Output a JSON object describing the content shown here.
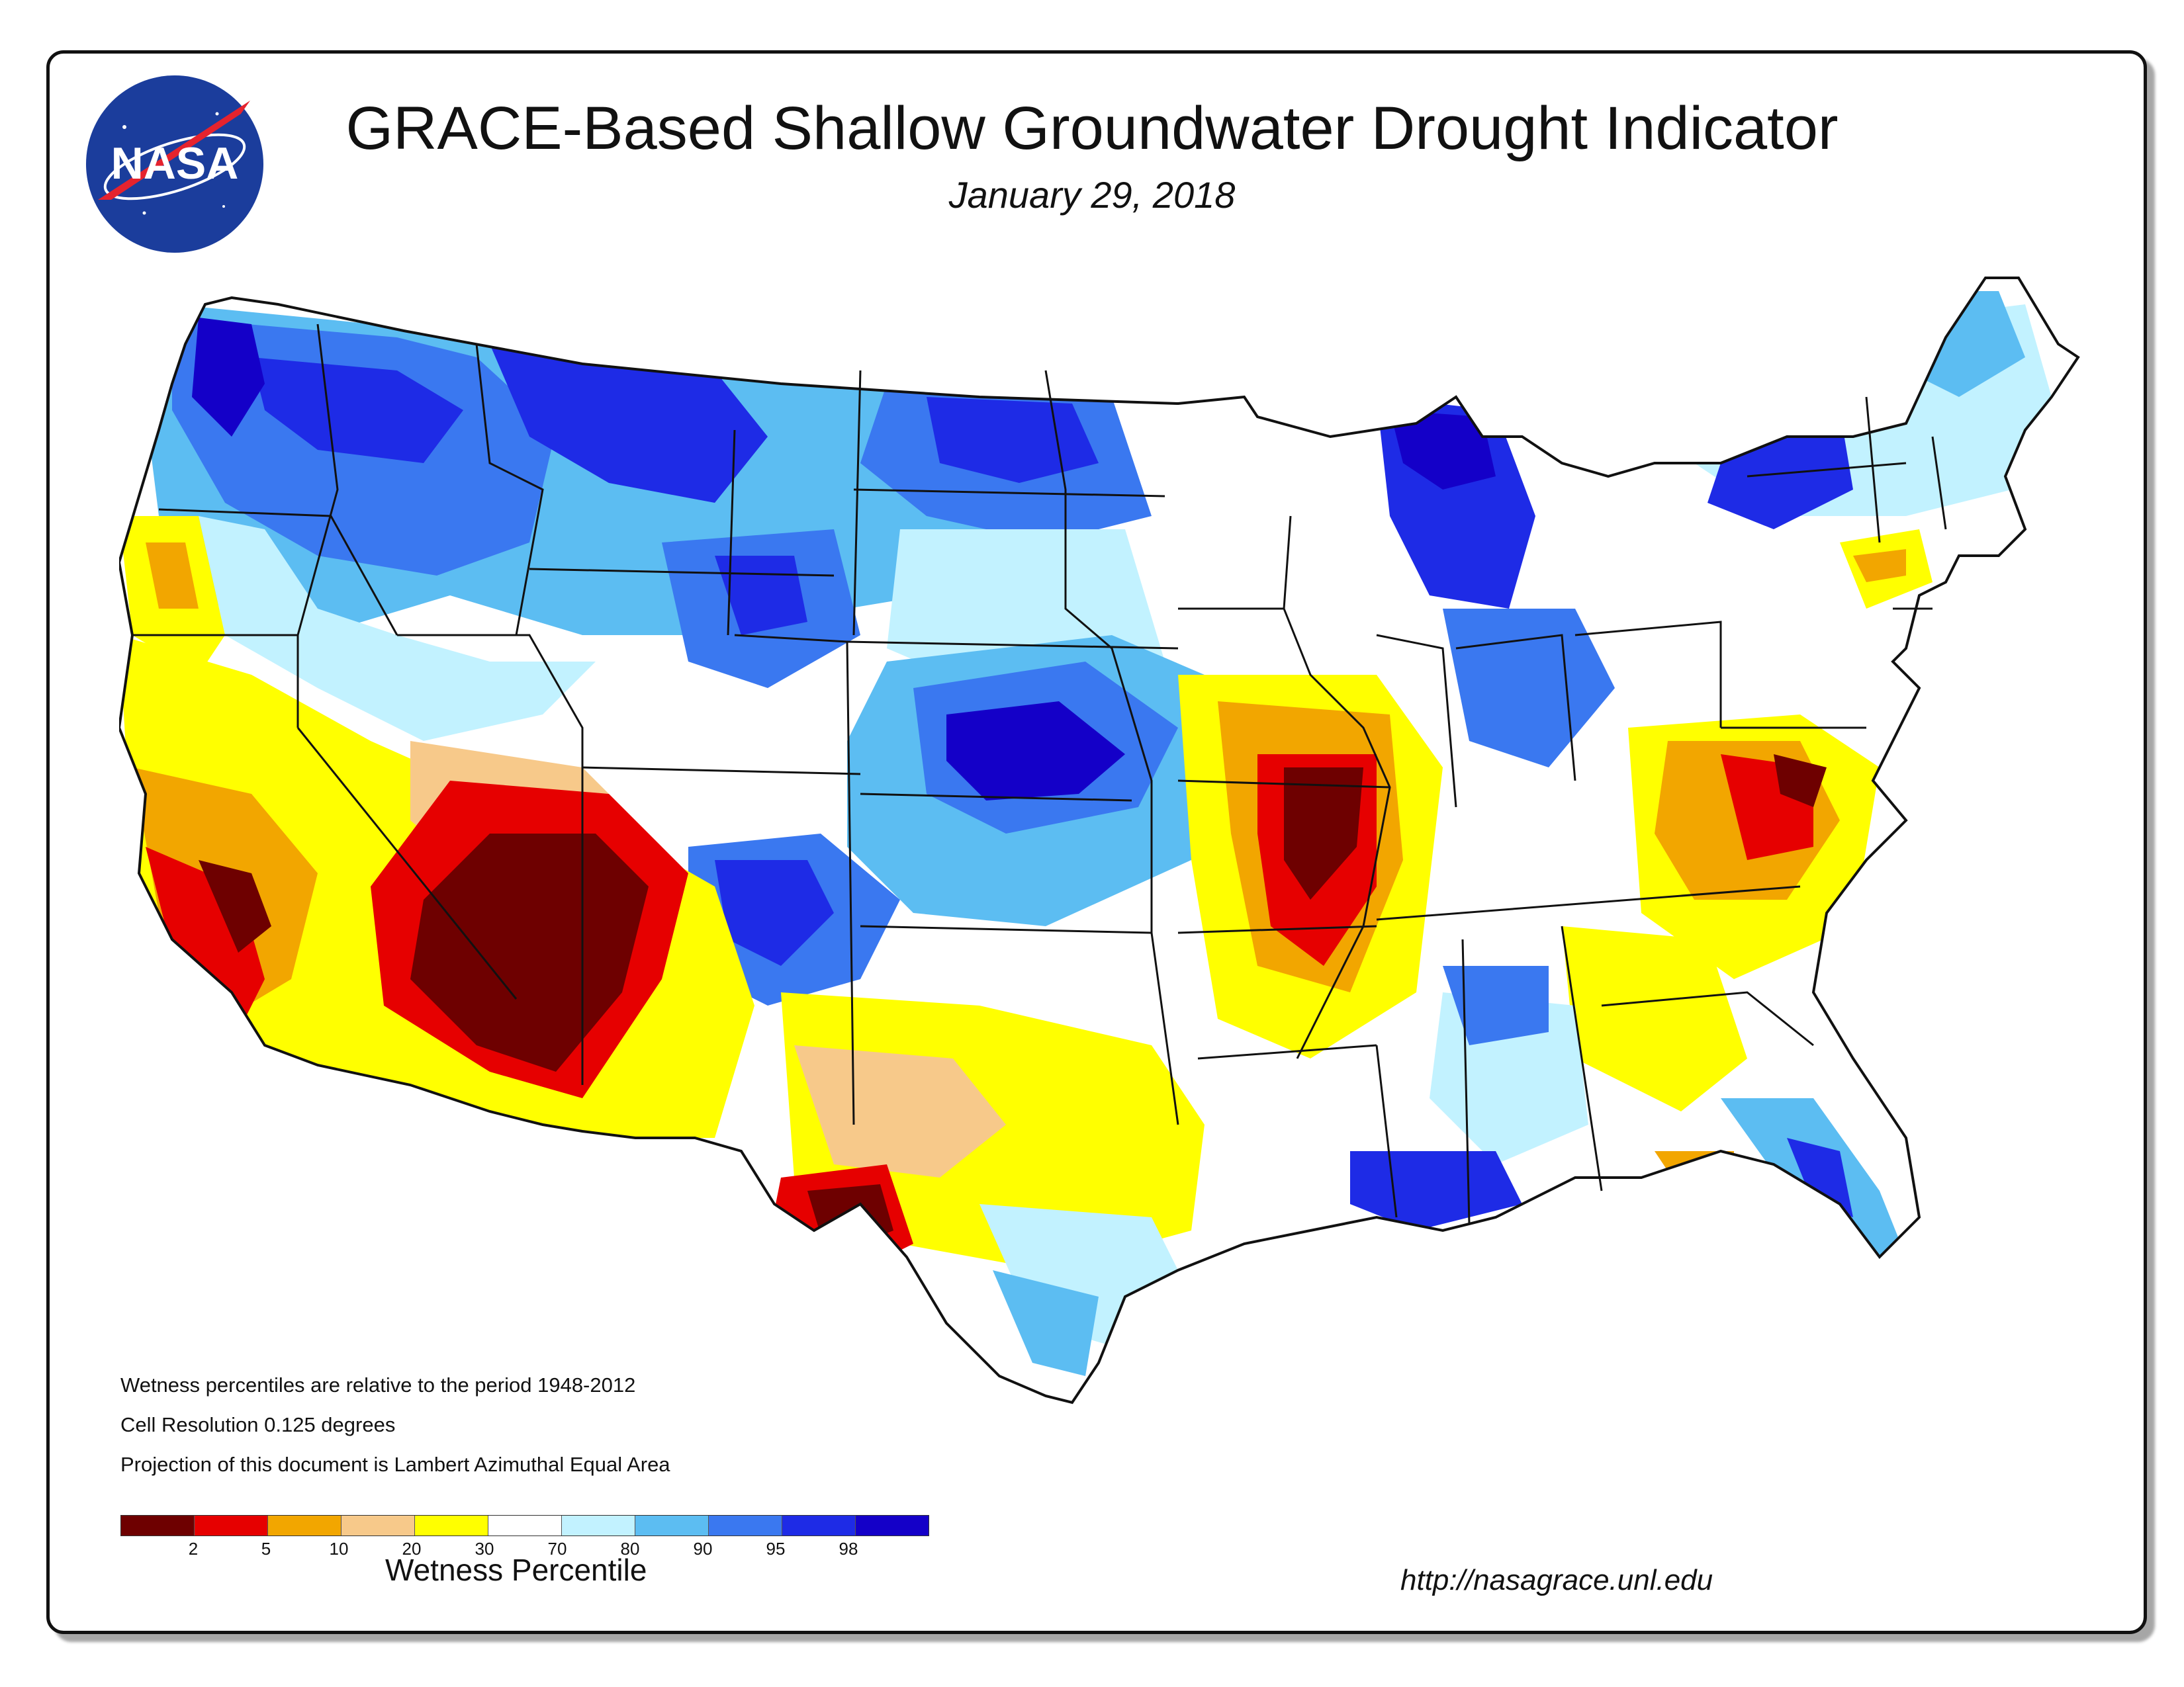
{
  "title": "GRACE-Based Shallow Groundwater Drought Indicator",
  "date": "January 29, 2018",
  "logo_text": "NASA",
  "notes": [
    "Wetness percentiles are relative to the period 1948-2012",
    "Cell Resolution 0.125 degrees",
    "Projection of this document is Lambert Azimuthal Equal Area"
  ],
  "legend": {
    "title": "Wetness Percentile",
    "ticks": [
      "2",
      "5",
      "10",
      "20",
      "30",
      "70",
      "80",
      "90",
      "95",
      "98"
    ],
    "colors": [
      "#6e0000",
      "#e60000",
      "#f2a600",
      "#f7c98a",
      "#ffff00",
      "#ffffff",
      "#c2f2ff",
      "#5cbdf2",
      "#3a78f0",
      "#1e2be6",
      "#1400c8"
    ]
  },
  "url": "http://nasagrace.unl.edu",
  "palette": {
    "extreme_dry": "#6e0000",
    "very_dry": "#e60000",
    "dry": "#f2a600",
    "moderately_dry": "#f7c98a",
    "slightly_dry": "#ffff00",
    "normal": "#ffffff",
    "slightly_wet": "#c2f2ff",
    "wet": "#5cbdf2",
    "very_wet": "#3a78f0",
    "extreme_wet": "#1e2be6",
    "max_wet": "#1400c8"
  }
}
